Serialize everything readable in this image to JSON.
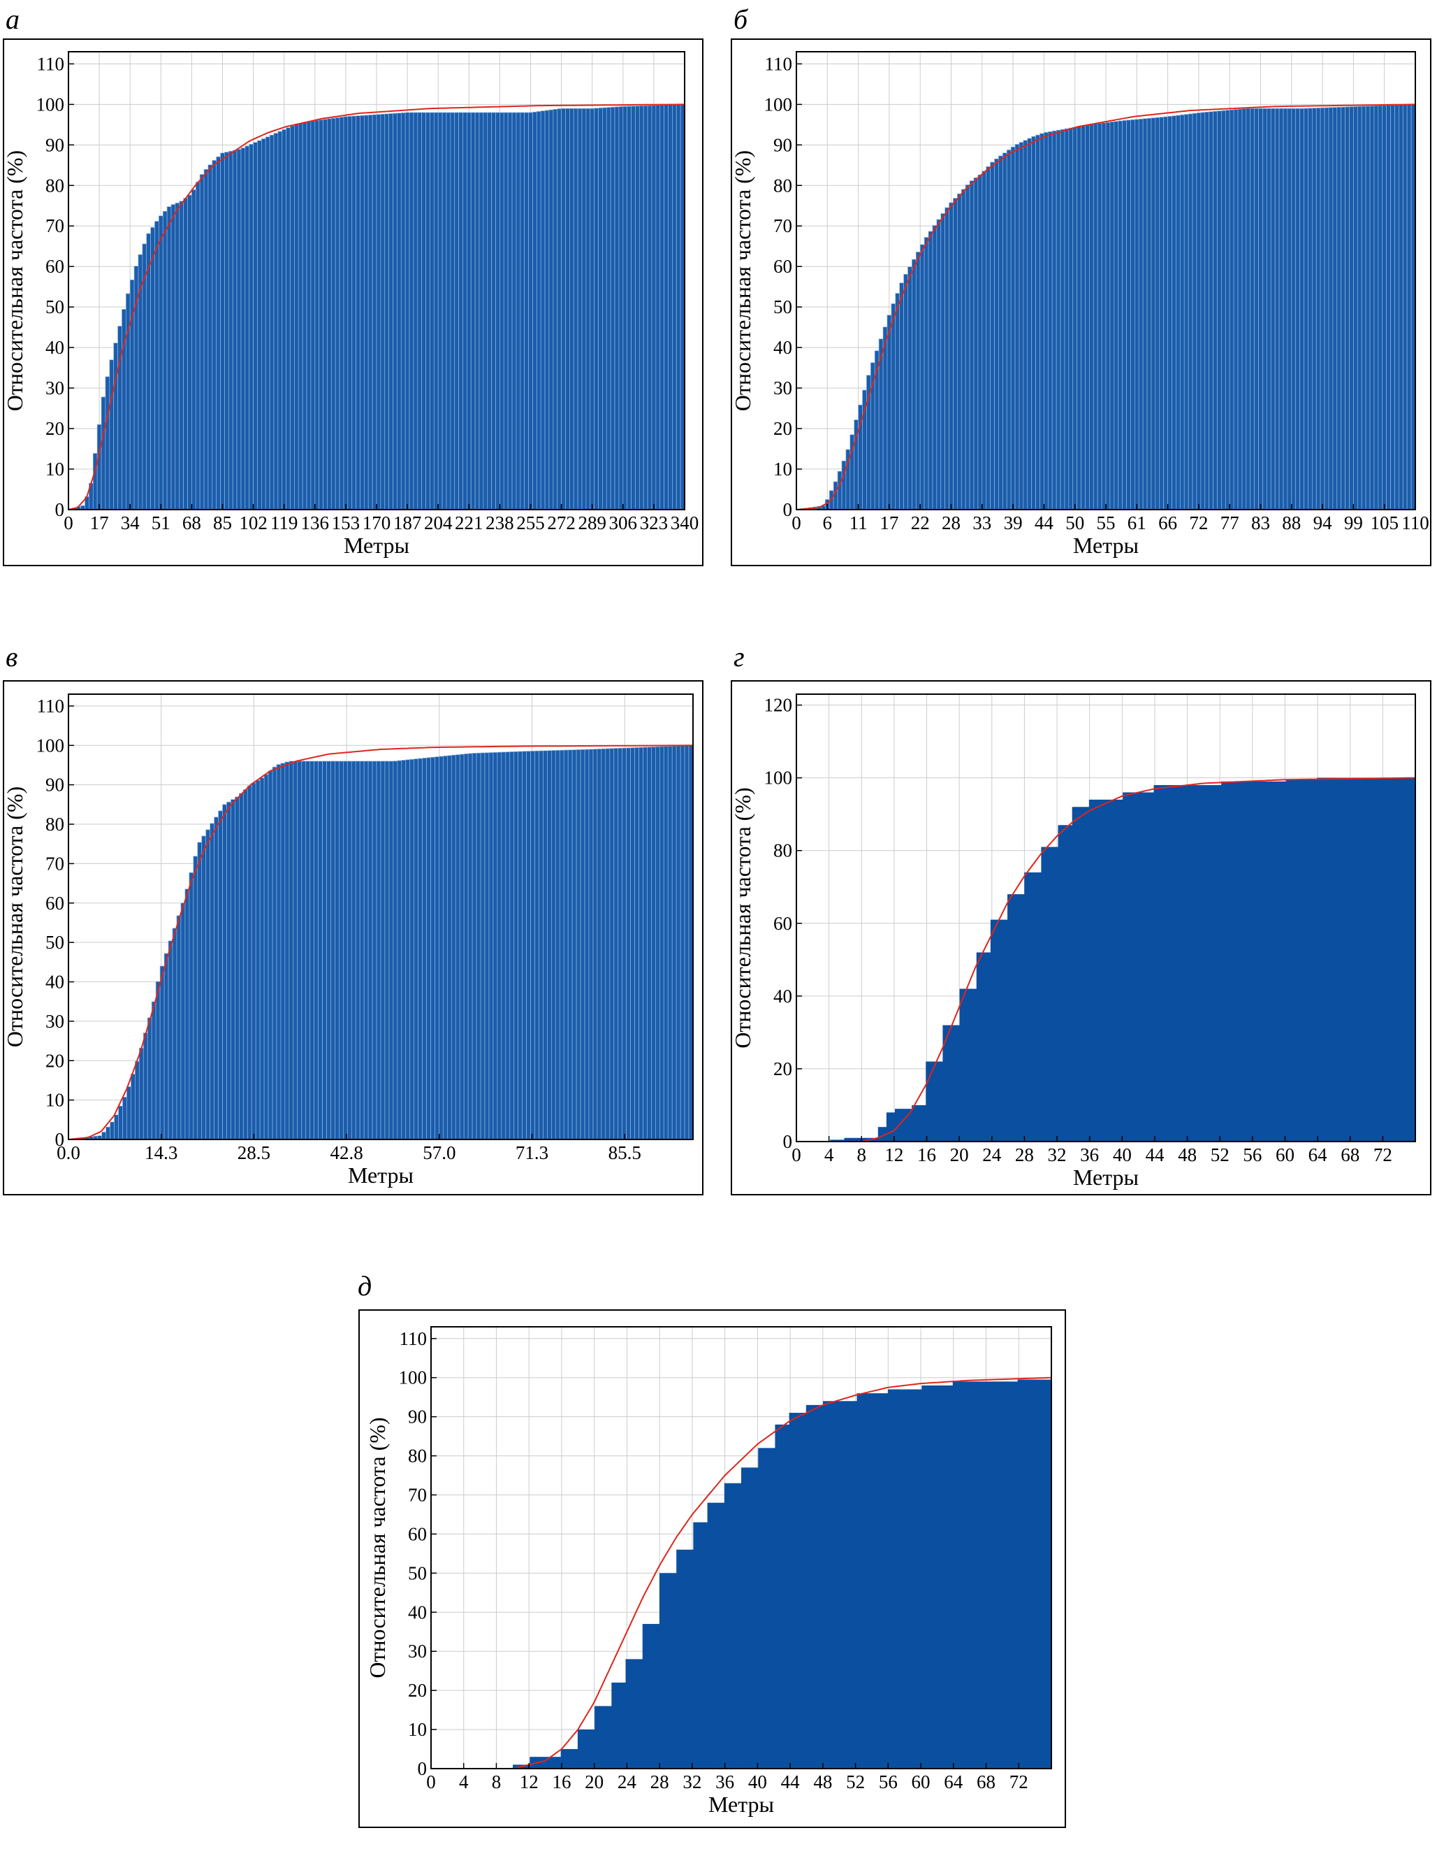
{
  "figure": {
    "panels": [
      {
        "letter": "а"
      },
      {
        "letter": "б"
      },
      {
        "letter": "в"
      },
      {
        "letter": "г"
      },
      {
        "letter": "д"
      }
    ]
  },
  "colors": {
    "bar": "#1b5dab",
    "bar_solid": "#0b4fa0",
    "bar_edge": "#8fb6e3",
    "curve": "#e0251b",
    "grid": "#cccccc"
  },
  "chart_data": [
    {
      "type": "bar",
      "panel": "а",
      "xlabel": "Метры",
      "ylabel": "Относительная частота (%)",
      "xlim": [
        0,
        340
      ],
      "ylim": [
        0,
        113
      ],
      "x_ticks": [
        "0",
        "17",
        "34",
        "51",
        "68",
        "85",
        "102",
        "119",
        "136",
        "153",
        "170",
        "187",
        "204",
        "221",
        "238",
        "255",
        "272",
        "289",
        "306",
        "323",
        "340"
      ],
      "x_tick_values": [
        0,
        17,
        34,
        51,
        68,
        85,
        102,
        119,
        136,
        153,
        170,
        187,
        204,
        221,
        238,
        255,
        272,
        289,
        306,
        323,
        340
      ],
      "y_ticks": [
        "0",
        "10",
        "20",
        "30",
        "40",
        "50",
        "60",
        "70",
        "80",
        "90",
        "100",
        "110"
      ],
      "y_tick_values": [
        0,
        10,
        20,
        30,
        40,
        50,
        60,
        70,
        80,
        90,
        100,
        110
      ],
      "grid": true,
      "bar_style": "outlined",
      "series": [
        {
          "kind": "cumulative_histogram",
          "x": [
            0,
            8,
            12,
            16,
            20,
            26,
            32,
            38,
            44,
            50,
            56,
            62,
            68,
            74,
            80,
            85,
            95,
            105,
            115,
            125,
            136,
            153,
            187,
            221,
            255,
            272,
            289,
            306,
            340
          ],
          "values": [
            0,
            1,
            5,
            18,
            30,
            41,
            52,
            61,
            68,
            72,
            75,
            76,
            78,
            83,
            86,
            88,
            89,
            91,
            93,
            95,
            96,
            97,
            98,
            98,
            98,
            99,
            99,
            99.5,
            100
          ]
        },
        {
          "kind": "fitted_curve",
          "x": [
            0,
            5,
            10,
            15,
            20,
            25,
            30,
            40,
            50,
            60,
            70,
            80,
            90,
            100,
            110,
            120,
            140,
            160,
            200,
            260,
            340
          ],
          "values": [
            0,
            0.5,
            3,
            10,
            20,
            30,
            40,
            55,
            66,
            74,
            80,
            85,
            88,
            91,
            93,
            94.5,
            96.5,
            97.8,
            99,
            99.7,
            100
          ]
        }
      ]
    },
    {
      "type": "bar",
      "panel": "б",
      "xlabel": "Метры",
      "ylabel": "Относительная частота (%)",
      "xlim": [
        0,
        110
      ],
      "ylim": [
        0,
        113
      ],
      "x_ticks": [
        "0",
        "6",
        "11",
        "17",
        "22",
        "28",
        "33",
        "39",
        "44",
        "50",
        "55",
        "61",
        "66",
        "72",
        "77",
        "83",
        "88",
        "94",
        "99",
        "105",
        "110"
      ],
      "x_tick_values": [
        0,
        5.5,
        11,
        16.5,
        22,
        27.5,
        33,
        38.5,
        44,
        49.5,
        55,
        60.5,
        66,
        71.5,
        77,
        82.5,
        88,
        93.5,
        99,
        104.5,
        110
      ],
      "y_ticks": [
        "0",
        "10",
        "20",
        "30",
        "40",
        "50",
        "60",
        "70",
        "80",
        "90",
        "100",
        "110"
      ],
      "y_tick_values": [
        0,
        10,
        20,
        30,
        40,
        50,
        60,
        70,
        80,
        90,
        100,
        110
      ],
      "grid": true,
      "bar_style": "outlined",
      "series": [
        {
          "kind": "cumulative_histogram",
          "x": [
            0,
            5,
            7,
            9,
            11,
            13,
            15,
            17,
            19,
            21,
            23,
            25,
            27,
            29,
            31,
            33,
            35,
            37,
            39,
            42,
            44,
            48,
            52,
            58,
            66,
            72,
            80,
            90,
            100,
            110
          ],
          "values": [
            0,
            1,
            7,
            14,
            24,
            34,
            42,
            50,
            57,
            62,
            67,
            71,
            75,
            78,
            81,
            83,
            86,
            88,
            90,
            92,
            93,
            94,
            95,
            96,
            97,
            98,
            99,
            99,
            99.5,
            100
          ]
        },
        {
          "kind": "fitted_curve",
          "x": [
            0,
            4,
            6,
            8,
            10,
            12,
            14,
            16,
            18,
            20,
            22,
            24,
            27,
            30,
            34,
            38,
            44,
            50,
            60,
            70,
            85,
            110
          ],
          "values": [
            0,
            0.5,
            2,
            7,
            15,
            24,
            33,
            42,
            50,
            57,
            63,
            68,
            74,
            79,
            84,
            88,
            92,
            94.5,
            97,
            98.5,
            99.5,
            100
          ]
        }
      ]
    },
    {
      "type": "bar",
      "panel": "в",
      "xlabel": "Метры",
      "ylabel": "Относительная частота (%)",
      "xlim": [
        0,
        96
      ],
      "ylim": [
        0,
        113
      ],
      "x_ticks": [
        "0.0",
        "14.3",
        "28.5",
        "42.8",
        "57.0",
        "71.3",
        "85.5"
      ],
      "x_tick_values": [
        0,
        14.25,
        28.5,
        42.75,
        57,
        71.25,
        85.5
      ],
      "y_ticks": [
        "0",
        "10",
        "20",
        "30",
        "40",
        "50",
        "60",
        "70",
        "80",
        "90",
        "100",
        "110"
      ],
      "y_tick_values": [
        0,
        10,
        20,
        30,
        40,
        50,
        60,
        70,
        80,
        90,
        100,
        110
      ],
      "grid": true,
      "bar_style": "outlined",
      "series": [
        {
          "kind": "cumulative_histogram",
          "x": [
            0,
            5,
            7,
            9,
            11,
            13,
            14,
            16,
            18,
            20,
            22,
            24,
            26,
            28,
            30,
            32,
            34,
            38,
            44,
            50,
            56,
            62,
            70,
            80,
            88,
            96
          ],
          "values": [
            0,
            1,
            5,
            12,
            22,
            34,
            42,
            52,
            62,
            75,
            80,
            85,
            87,
            90,
            92,
            95,
            96,
            96,
            96,
            96,
            97,
            98,
            98.5,
            99,
            99.5,
            100
          ]
        },
        {
          "kind": "fitted_curve",
          "x": [
            0,
            3,
            5,
            7,
            9,
            11,
            13,
            15,
            17,
            19,
            21,
            23,
            25,
            28,
            31,
            35,
            40,
            48,
            56,
            70,
            96
          ],
          "values": [
            0,
            0.5,
            2,
            6,
            13,
            22,
            33,
            45,
            56,
            66,
            74,
            80,
            85,
            90,
            93.5,
            96,
            97.8,
            99,
            99.5,
            99.8,
            100
          ]
        }
      ]
    },
    {
      "type": "bar",
      "panel": "г",
      "xlabel": "Метры",
      "ylabel": "Относительная частота (%)",
      "xlim": [
        0,
        76
      ],
      "ylim": [
        0,
        123
      ],
      "x_ticks": [
        "0",
        "4",
        "8",
        "12",
        "16",
        "20",
        "24",
        "28",
        "32",
        "36",
        "40",
        "44",
        "48",
        "52",
        "56",
        "60",
        "64",
        "68",
        "72"
      ],
      "x_tick_values": [
        0,
        4,
        8,
        12,
        16,
        20,
        24,
        28,
        32,
        36,
        40,
        44,
        48,
        52,
        56,
        60,
        64,
        68,
        72
      ],
      "y_ticks": [
        "0",
        "20",
        "40",
        "60",
        "80",
        "100",
        "120"
      ],
      "y_tick_values": [
        0,
        20,
        40,
        60,
        80,
        100,
        120
      ],
      "grid": true,
      "bar_style": "solid",
      "series": [
        {
          "kind": "cumulative_histogram",
          "x": [
            0,
            4,
            6,
            8,
            10,
            11,
            12,
            14,
            16,
            18,
            20,
            22,
            24,
            26,
            28,
            30,
            32,
            34,
            36,
            40,
            44,
            52,
            60,
            64,
            76
          ],
          "values": [
            0,
            0.5,
            1,
            1,
            4,
            8,
            9,
            10,
            22,
            32,
            42,
            52,
            61,
            68,
            74,
            81,
            87,
            92,
            94,
            96,
            98,
            99,
            99.5,
            100,
            100
          ]
        },
        {
          "kind": "fitted_curve",
          "x": [
            0,
            8,
            10,
            12,
            14,
            16,
            18,
            20,
            22,
            24,
            26,
            28,
            30,
            32,
            34,
            36,
            40,
            44,
            50,
            60,
            76
          ],
          "values": [
            0,
            0,
            1,
            3,
            8,
            16,
            26,
            37,
            48,
            57,
            66,
            73,
            79,
            84,
            88,
            91,
            95,
            97,
            98.5,
            99.5,
            100
          ]
        }
      ]
    },
    {
      "type": "bar",
      "panel": "д",
      "xlabel": "Метры",
      "ylabel": "Относительная частота (%)",
      "xlim": [
        0,
        76
      ],
      "ylim": [
        0,
        113
      ],
      "x_ticks": [
        "0",
        "4",
        "8",
        "12",
        "16",
        "20",
        "24",
        "28",
        "32",
        "36",
        "40",
        "44",
        "48",
        "52",
        "56",
        "60",
        "64",
        "68",
        "72"
      ],
      "x_tick_values": [
        0,
        4,
        8,
        12,
        16,
        20,
        24,
        28,
        32,
        36,
        40,
        44,
        48,
        52,
        56,
        60,
        64,
        68,
        72
      ],
      "y_ticks": [
        "0",
        "10",
        "20",
        "30",
        "40",
        "50",
        "60",
        "70",
        "80",
        "90",
        "100",
        "110"
      ],
      "y_tick_values": [
        0,
        10,
        20,
        30,
        40,
        50,
        60,
        70,
        80,
        90,
        100,
        110
      ],
      "grid": true,
      "bar_style": "solid",
      "series": [
        {
          "kind": "cumulative_histogram",
          "x": [
            0,
            9,
            10,
            12,
            14,
            16,
            18,
            20,
            22,
            24,
            26,
            28,
            30,
            32,
            34,
            36,
            38,
            40,
            42,
            44,
            46,
            48,
            52,
            56,
            60,
            64,
            68,
            72,
            76
          ],
          "values": [
            0,
            0,
            1,
            3,
            3,
            5,
            10,
            16,
            22,
            28,
            37,
            50,
            56,
            63,
            68,
            73,
            77,
            82,
            88,
            91,
            93,
            94,
            96,
            97,
            98,
            99,
            99,
            99.5,
            100
          ]
        },
        {
          "kind": "fitted_curve",
          "x": [
            0,
            10,
            12,
            14,
            16,
            18,
            20,
            22,
            24,
            26,
            28,
            30,
            32,
            34,
            36,
            38,
            40,
            44,
            48,
            52,
            56,
            60,
            66,
            76
          ],
          "values": [
            0,
            0,
            1,
            2,
            5,
            10,
            17,
            26,
            35,
            44,
            52,
            59,
            65,
            70,
            75,
            79,
            83,
            89,
            93,
            95.5,
            97.5,
            98.5,
            99.3,
            100
          ]
        }
      ]
    }
  ]
}
